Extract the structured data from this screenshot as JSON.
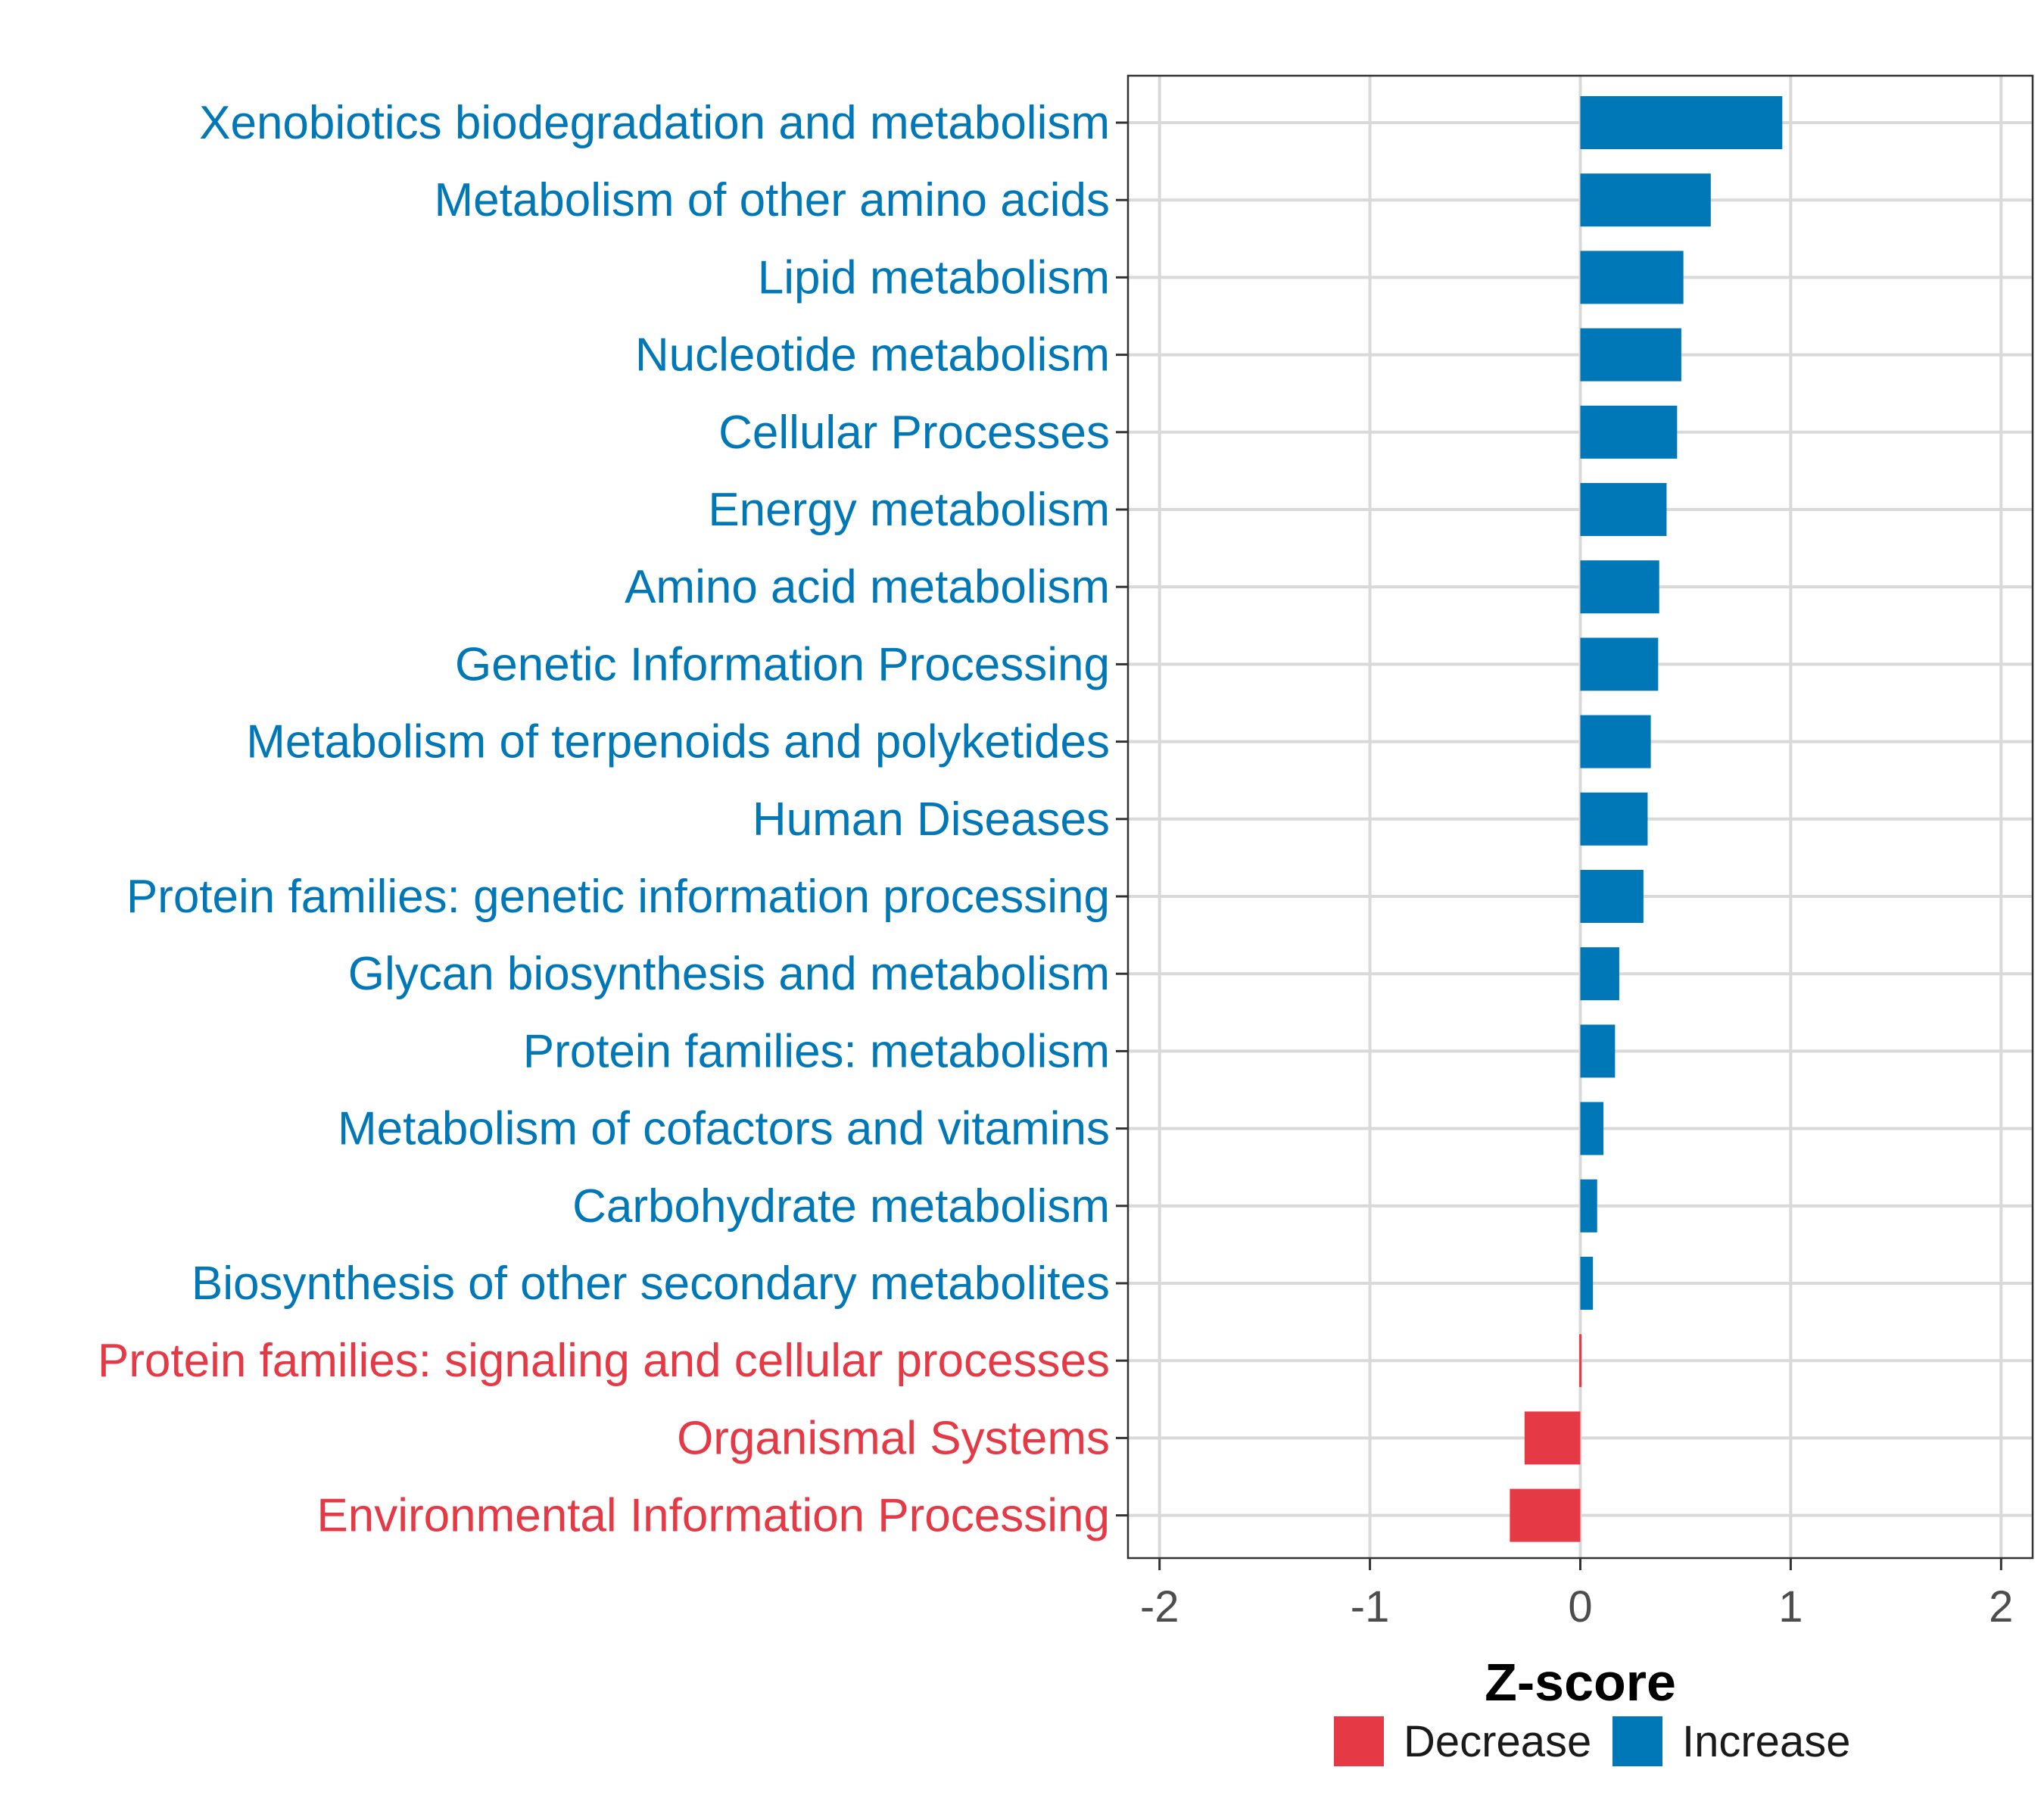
{
  "chart_data": {
    "type": "bar",
    "orientation": "horizontal",
    "xlabel": "Z-score",
    "ylabel": "",
    "xlim": [
      -2.15,
      2.15
    ],
    "xticks": [
      -2,
      -1,
      0,
      1,
      2
    ],
    "tick_labels": [
      "-2",
      "-1",
      "0",
      "1",
      "2"
    ],
    "grid": true,
    "colors": {
      "Decrease": "#e63946",
      "Increase": "#0077b6"
    },
    "legend": {
      "position": "bottom",
      "items": [
        {
          "label": "Decrease",
          "color": "#e63946"
        },
        {
          "label": "Increase",
          "color": "#0077b6"
        }
      ]
    },
    "categories": [
      {
        "label": "Xenobiotics biodegradation and metabolism",
        "value": 0.96,
        "group": "Increase"
      },
      {
        "label": "Metabolism of other amino acids",
        "value": 0.62,
        "group": "Increase"
      },
      {
        "label": "Lipid metabolism",
        "value": 0.49,
        "group": "Increase"
      },
      {
        "label": "Nucleotide metabolism",
        "value": 0.48,
        "group": "Increase"
      },
      {
        "label": "Cellular Processes",
        "value": 0.46,
        "group": "Increase"
      },
      {
        "label": "Energy metabolism",
        "value": 0.41,
        "group": "Increase"
      },
      {
        "label": "Amino acid metabolism",
        "value": 0.375,
        "group": "Increase"
      },
      {
        "label": "Genetic Information Processing",
        "value": 0.37,
        "group": "Increase"
      },
      {
        "label": "Metabolism of terpenoids and polyketides",
        "value": 0.335,
        "group": "Increase"
      },
      {
        "label": "Human Diseases",
        "value": 0.32,
        "group": "Increase"
      },
      {
        "label": "Protein families: genetic information processing",
        "value": 0.3,
        "group": "Increase"
      },
      {
        "label": "Glycan biosynthesis and metabolism",
        "value": 0.185,
        "group": "Increase"
      },
      {
        "label": "Protein families: metabolism",
        "value": 0.165,
        "group": "Increase"
      },
      {
        "label": "Metabolism of cofactors and vitamins",
        "value": 0.11,
        "group": "Increase"
      },
      {
        "label": "Carbohydrate metabolism",
        "value": 0.08,
        "group": "Increase"
      },
      {
        "label": "Biosynthesis of other secondary metabolites",
        "value": 0.06,
        "group": "Increase"
      },
      {
        "label": "Protein families: signaling and cellular processes",
        "value": -0.005,
        "group": "Decrease"
      },
      {
        "label": "Organismal Systems",
        "value": -0.265,
        "group": "Decrease"
      },
      {
        "label": "Environmental Information Processing",
        "value": -0.335,
        "group": "Decrease"
      }
    ]
  }
}
